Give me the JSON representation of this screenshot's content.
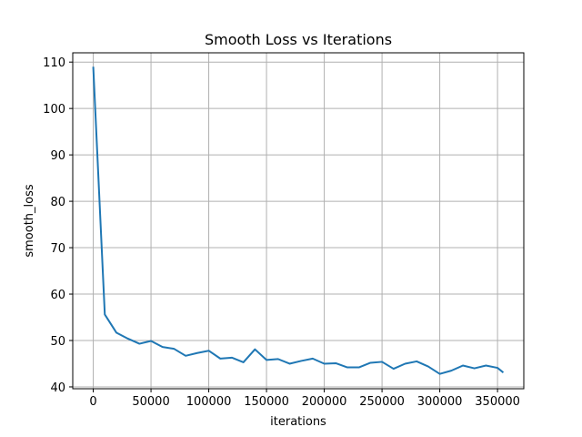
{
  "chart_data": {
    "type": "line",
    "title": "Smooth Loss vs Iterations",
    "xlabel": "iterations",
    "ylabel": "smooth_loss",
    "xlim": [
      -17750,
      372750
    ],
    "ylim": [
      39.6,
      112.0
    ],
    "xticks": [
      0,
      50000,
      100000,
      150000,
      200000,
      250000,
      300000,
      350000
    ],
    "yticks": [
      40,
      50,
      60,
      70,
      80,
      90,
      100,
      110
    ],
    "grid": true,
    "series": [
      {
        "color": "#1f77b4",
        "x": [
          0,
          10000,
          20000,
          30000,
          40000,
          50000,
          60000,
          70000,
          80000,
          90000,
          100000,
          110000,
          120000,
          130000,
          140000,
          150000,
          160000,
          170000,
          180000,
          190000,
          200000,
          210000,
          220000,
          230000,
          240000,
          250000,
          260000,
          270000,
          280000,
          290000,
          300000,
          310000,
          320000,
          330000,
          340000,
          350000,
          355000
        ],
        "y": [
          109.0,
          55.6,
          51.7,
          50.4,
          49.3,
          49.9,
          48.6,
          48.2,
          46.7,
          47.3,
          47.8,
          46.1,
          46.3,
          45.3,
          48.1,
          45.8,
          46.0,
          45.0,
          45.6,
          46.1,
          45.0,
          45.1,
          44.2,
          44.2,
          45.2,
          45.4,
          43.9,
          45.0,
          45.5,
          44.4,
          42.8,
          43.5,
          44.6,
          44.0,
          44.6,
          44.1,
          43.1
        ]
      }
    ]
  }
}
